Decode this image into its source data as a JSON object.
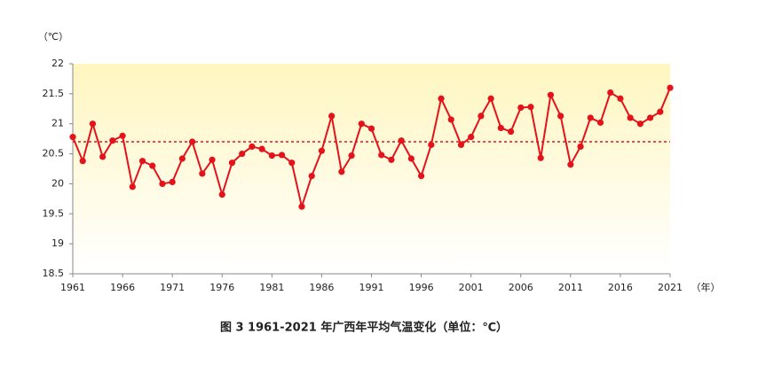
{
  "chart_data": {
    "type": "line",
    "caption": "图 3 1961-2021 年广西年平均气温变化（单位：℃）",
    "y_unit": "（℃）",
    "x_unit": "（年）",
    "x": [
      1961,
      1962,
      1963,
      1964,
      1965,
      1966,
      1967,
      1968,
      1969,
      1970,
      1971,
      1972,
      1973,
      1974,
      1975,
      1976,
      1977,
      1978,
      1979,
      1980,
      1981,
      1982,
      1983,
      1984,
      1985,
      1986,
      1987,
      1988,
      1989,
      1990,
      1991,
      1992,
      1993,
      1994,
      1995,
      1996,
      1997,
      1998,
      1999,
      2000,
      2001,
      2002,
      2003,
      2004,
      2005,
      2006,
      2007,
      2008,
      2009,
      2010,
      2011,
      2012,
      2013,
      2014,
      2015,
      2016,
      2017,
      2018,
      2019,
      2020,
      2021
    ],
    "values": [
      20.78,
      20.38,
      21.0,
      20.45,
      20.72,
      20.8,
      19.95,
      20.38,
      20.3,
      20.0,
      20.03,
      20.42,
      20.7,
      20.17,
      20.4,
      19.82,
      20.35,
      20.5,
      20.62,
      20.58,
      20.47,
      20.48,
      20.35,
      19.62,
      20.13,
      20.55,
      21.13,
      20.2,
      20.47,
      21.0,
      20.92,
      20.48,
      20.4,
      20.72,
      20.42,
      20.13,
      20.65,
      21.42,
      21.07,
      20.65,
      20.78,
      21.13,
      21.42,
      20.93,
      20.87,
      21.27,
      21.28,
      20.43,
      21.48,
      21.13,
      20.32,
      20.62,
      21.1,
      21.02,
      21.52,
      21.42,
      21.1,
      21.0,
      21.1,
      21.2,
      21.6
    ],
    "color": "#e3121b",
    "average": 20.7,
    "xlim": [
      1961,
      2021
    ],
    "xticks": [
      1961,
      1966,
      1971,
      1976,
      1981,
      1986,
      1991,
      1996,
      2001,
      2006,
      2011,
      2016,
      2021
    ],
    "ylim": [
      18.5,
      22
    ],
    "yticks": [
      18.5,
      19,
      19.5,
      20,
      20.5,
      21,
      21.5,
      22
    ]
  }
}
